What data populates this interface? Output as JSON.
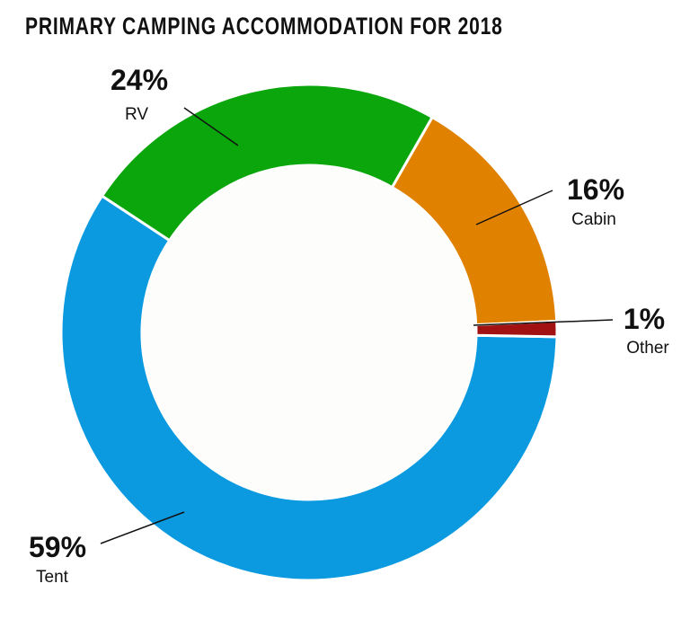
{
  "chart_data": {
    "type": "pie",
    "variant": "donut",
    "title": "PRIMARY CAMPING ACCOMMODATION FOR 2018",
    "slices": [
      {
        "label": "Tent",
        "value": 59,
        "display": "59%",
        "color": "#0b9ae0"
      },
      {
        "label": "RV",
        "value": 24,
        "display": "24%",
        "color": "#0aa60c"
      },
      {
        "label": "Cabin",
        "value": 16,
        "display": "16%",
        "color": "#e08100"
      },
      {
        "label": "Other",
        "value": 1,
        "display": "1%",
        "color": "#a31212"
      }
    ],
    "legend": "none",
    "labels": "outside with leader lines"
  }
}
